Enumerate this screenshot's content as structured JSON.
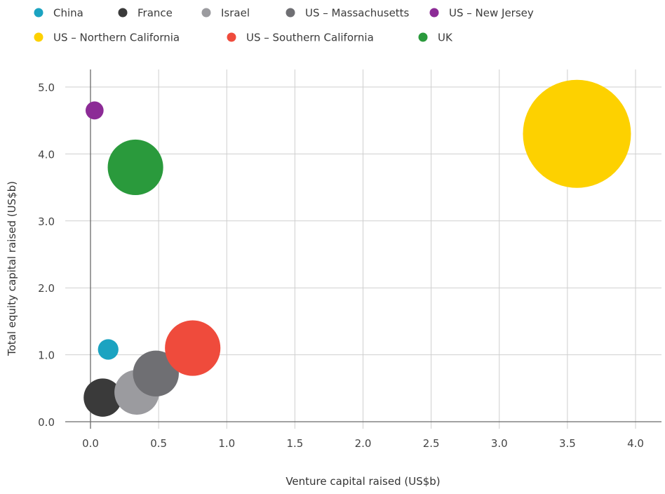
{
  "chart_data": {
    "type": "scatter",
    "xlabel": "Venture capital raised (US$b)",
    "ylabel": "Total equity capital raised (US$b)",
    "xlim": [
      0.0,
      4.0
    ],
    "ylim": [
      0.0,
      5.0
    ],
    "x_ticks": [
      "0.0",
      "0.5",
      "1.0",
      "1.5",
      "2.0",
      "2.5",
      "3.0",
      "3.5",
      "4.0"
    ],
    "y_ticks": [
      "0.0",
      "1.0",
      "2.0",
      "3.0",
      "4.0",
      "5.0"
    ],
    "x_tick_values": [
      0,
      0.5,
      1,
      1.5,
      2,
      2.5,
      3,
      3.5,
      4
    ],
    "y_tick_values": [
      0,
      1,
      2,
      3,
      4,
      5
    ],
    "grid": true,
    "legend_position": "top",
    "series": [
      {
        "name": "China",
        "color": "#1ba3c1",
        "x": 0.13,
        "y": 1.08,
        "size": 0.13
      },
      {
        "name": "France",
        "color": "#3a3a3a",
        "x": 0.09,
        "y": 0.36,
        "size": 0.45
      },
      {
        "name": "Israel",
        "color": "#9b9b9f",
        "x": 0.34,
        "y": 0.44,
        "size": 0.62
      },
      {
        "name": "US – Massachusetts",
        "color": "#6f6f73",
        "x": 0.48,
        "y": 0.72,
        "size": 0.65
      },
      {
        "name": "US – New Jersey",
        "color": "#8c2b96",
        "x": 0.03,
        "y": 4.65,
        "size": 0.1
      },
      {
        "name": "US – Northern California",
        "color": "#fdd100",
        "x": 3.57,
        "y": 4.3,
        "size": 3.6
      },
      {
        "name": "US – Southern California",
        "color": "#ef4b3c",
        "x": 0.75,
        "y": 1.1,
        "size": 0.95
      },
      {
        "name": "UK",
        "color": "#2a9a3c",
        "x": 0.33,
        "y": 3.8,
        "size": 0.95
      }
    ]
  }
}
